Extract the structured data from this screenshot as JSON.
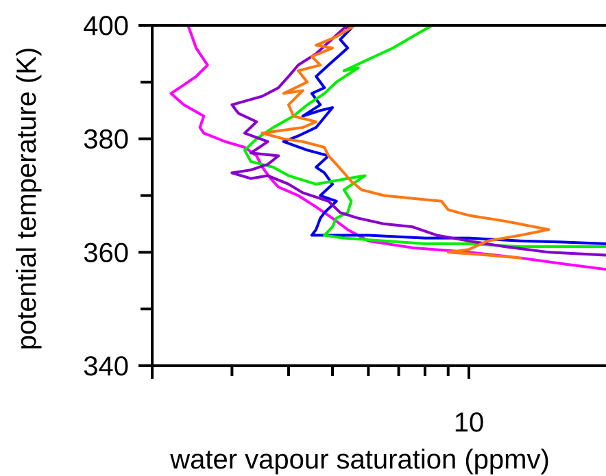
{
  "chart_data": {
    "type": "line",
    "title": "",
    "xlabel": "water vapour saturation (ppmv)",
    "ylabel": "potential temperature (K)",
    "x_scale": "log",
    "xlim": [
      2,
      20
    ],
    "ylim": [
      340,
      400
    ],
    "x_tick_labels": [
      {
        "value": 10,
        "label": "10"
      }
    ],
    "x_minor_ticks": [
      2,
      3,
      4,
      5,
      6,
      7,
      8,
      9,
      10
    ],
    "y_tick_labels": [
      {
        "value": 340,
        "label": "340"
      },
      {
        "value": 360,
        "label": "360"
      },
      {
        "value": 380,
        "label": "380"
      },
      {
        "value": 400,
        "label": "400"
      }
    ],
    "y_minor_ticks": [
      350,
      370,
      390
    ],
    "grid": false,
    "series": [
      {
        "color": "#ff00ff",
        "points": [
          [
            2.4,
            400
          ],
          [
            2.45,
            398
          ],
          [
            2.5,
            396
          ],
          [
            2.65,
            393
          ],
          [
            2.5,
            391
          ],
          [
            2.3,
            389
          ],
          [
            2.2,
            388
          ],
          [
            2.35,
            386
          ],
          [
            2.6,
            384
          ],
          [
            2.55,
            382
          ],
          [
            2.6,
            381
          ],
          [
            2.9,
            379.5
          ],
          [
            3.2,
            378.5
          ],
          [
            3.4,
            377
          ],
          [
            3.5,
            375
          ],
          [
            3.65,
            373
          ],
          [
            3.8,
            371.5
          ],
          [
            4.2,
            370
          ],
          [
            4.6,
            368
          ],
          [
            5.0,
            366
          ],
          [
            5.4,
            364
          ],
          [
            6.0,
            362
          ],
          [
            7.5,
            360.8
          ],
          [
            10,
            360
          ],
          [
            13,
            359
          ],
          [
            16,
            358
          ],
          [
            20,
            357
          ]
        ]
      },
      {
        "color": "#0000ee",
        "points": [
          [
            5.5,
            399.5
          ],
          [
            5.2,
            397.5
          ],
          [
            5.4,
            396
          ],
          [
            4.9,
            393
          ],
          [
            4.6,
            391
          ],
          [
            4.8,
            389
          ],
          [
            4.5,
            388
          ],
          [
            4.7,
            386
          ],
          [
            4.3,
            384
          ],
          [
            4.7,
            385
          ],
          [
            5.0,
            385.5
          ],
          [
            4.6,
            382
          ],
          [
            4.2,
            380.5
          ],
          [
            3.9,
            379.5
          ],
          [
            4.4,
            378
          ],
          [
            4.9,
            377
          ],
          [
            4.6,
            375
          ],
          [
            4.8,
            374
          ],
          [
            5.0,
            372
          ],
          [
            4.7,
            370
          ],
          [
            5.1,
            369
          ],
          [
            4.8,
            367
          ],
          [
            4.7,
            366
          ],
          [
            4.6,
            364
          ],
          [
            4.5,
            363
          ],
          [
            5.2,
            363
          ],
          [
            6.0,
            363
          ],
          [
            8.0,
            362.5
          ],
          [
            10,
            362.5
          ],
          [
            13,
            362
          ],
          [
            16,
            361.8
          ],
          [
            20,
            361.5
          ]
        ]
      },
      {
        "color": "#00ee00",
        "points": [
          [
            8.3,
            400
          ],
          [
            7.5,
            398
          ],
          [
            6.8,
            396
          ],
          [
            6.0,
            394
          ],
          [
            5.3,
            392
          ],
          [
            5.7,
            392.5
          ],
          [
            5.1,
            390
          ],
          [
            4.8,
            388
          ],
          [
            4.4,
            386
          ],
          [
            4.1,
            384
          ],
          [
            3.7,
            382
          ],
          [
            3.4,
            380
          ],
          [
            3.2,
            378
          ],
          [
            3.3,
            376
          ],
          [
            3.7,
            375
          ],
          [
            4.0,
            373.5
          ],
          [
            4.6,
            372
          ],
          [
            5.4,
            373
          ],
          [
            5.9,
            373.5
          ],
          [
            5.3,
            371
          ],
          [
            5.5,
            369
          ],
          [
            5.4,
            367
          ],
          [
            5.1,
            366
          ],
          [
            5.0,
            364.5
          ],
          [
            4.8,
            363
          ],
          [
            5.3,
            362.5
          ],
          [
            6.5,
            362
          ],
          [
            8,
            361.5
          ],
          [
            10,
            361.5
          ],
          [
            13,
            361
          ],
          [
            16,
            361
          ],
          [
            20,
            361
          ]
        ]
      },
      {
        "color": "#8800cc",
        "points": [
          [
            5.6,
            400
          ],
          [
            5.3,
            399.5
          ],
          [
            4.9,
            397
          ],
          [
            4.6,
            395
          ],
          [
            4.2,
            393
          ],
          [
            4.0,
            391
          ],
          [
            3.8,
            389
          ],
          [
            3.5,
            387.5
          ],
          [
            3.0,
            386
          ],
          [
            3.1,
            384.5
          ],
          [
            3.4,
            383
          ],
          [
            3.2,
            381
          ],
          [
            3.6,
            379.5
          ],
          [
            3.3,
            377.5
          ],
          [
            3.8,
            377
          ],
          [
            3.6,
            375.5
          ],
          [
            3.3,
            374.5
          ],
          [
            3.0,
            374
          ],
          [
            3.3,
            373
          ],
          [
            3.6,
            373.5
          ],
          [
            4.0,
            372
          ],
          [
            4.3,
            370.5
          ],
          [
            4.9,
            369
          ],
          [
            5.2,
            367
          ],
          [
            5.7,
            366
          ],
          [
            6.5,
            365
          ],
          [
            7.5,
            364.5
          ],
          [
            8.5,
            363
          ],
          [
            10,
            362
          ],
          [
            12,
            361
          ],
          [
            15,
            360
          ],
          [
            20,
            359.5
          ]
        ]
      },
      {
        "color": "#ff7711",
        "points": [
          [
            5.6,
            400
          ],
          [
            5.1,
            398
          ],
          [
            4.6,
            396.5
          ],
          [
            5.0,
            396
          ],
          [
            4.5,
            394.5
          ],
          [
            4.7,
            393
          ],
          [
            4.2,
            392
          ],
          [
            4.4,
            390
          ],
          [
            3.9,
            388
          ],
          [
            4.3,
            388.5
          ],
          [
            4.0,
            386
          ],
          [
            4.1,
            384
          ],
          [
            4.6,
            383
          ],
          [
            4.3,
            382
          ],
          [
            3.5,
            381
          ],
          [
            3.9,
            380
          ],
          [
            4.3,
            379.5
          ],
          [
            4.8,
            378.5
          ],
          [
            4.9,
            377
          ],
          [
            5.1,
            375.5
          ],
          [
            5.3,
            374
          ],
          [
            5.5,
            372.5
          ],
          [
            5.8,
            371
          ],
          [
            6.5,
            370
          ],
          [
            7.5,
            369.5
          ],
          [
            8.7,
            369
          ],
          [
            9.0,
            367.5
          ],
          [
            10,
            366.5
          ],
          [
            12,
            365.5
          ],
          [
            15,
            364
          ],
          [
            13,
            363
          ],
          [
            11,
            362
          ],
          [
            10,
            360.5
          ],
          [
            9,
            360
          ],
          [
            11,
            359.5
          ],
          [
            13,
            359
          ]
        ]
      }
    ]
  }
}
